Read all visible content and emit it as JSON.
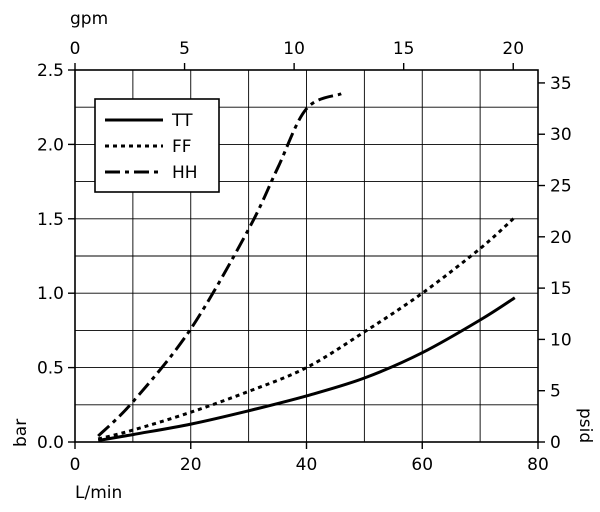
{
  "chart_data": {
    "type": "line",
    "x_unit": "L/min",
    "x_secondary_unit": "gpm",
    "y_unit": "bar",
    "y_secondary_unit": "psid",
    "xlim": [
      0,
      80
    ],
    "ylim": [
      0,
      2.5
    ],
    "x_secondary_lim": [
      0,
      21.13
    ],
    "y_secondary_lim": [
      0,
      36.26
    ],
    "x_ticks": [
      0,
      20,
      40,
      60,
      80
    ],
    "x_tick_labels": [
      "0",
      "20",
      "40",
      "60",
      "80"
    ],
    "y_ticks": [
      0,
      0.5,
      1.0,
      1.5,
      2.0,
      2.5
    ],
    "y_tick_labels": [
      "0.0",
      "0.5",
      "1.0",
      "1.5",
      "2.0",
      "2.5"
    ],
    "x_secondary_ticks": [
      0,
      5,
      10,
      15,
      20
    ],
    "x_secondary_tick_labels": [
      "0",
      "5",
      "10",
      "15",
      "20"
    ],
    "y_secondary_ticks": [
      0,
      5,
      10,
      15,
      20,
      25,
      30,
      35
    ],
    "y_secondary_tick_labels": [
      "0",
      "5",
      "10",
      "15",
      "20",
      "25",
      "30",
      "35"
    ],
    "grid": true,
    "legend_position": "top-left",
    "series": [
      {
        "name": "TT",
        "style": "solid",
        "x": [
          4,
          10,
          20,
          30,
          40,
          50,
          60,
          70,
          76
        ],
        "y": [
          0.01,
          0.05,
          0.12,
          0.21,
          0.31,
          0.43,
          0.6,
          0.82,
          0.97
        ]
      },
      {
        "name": "FF",
        "style": "dotted",
        "x": [
          4,
          10,
          20,
          30,
          40,
          50,
          60,
          70,
          76
        ],
        "y": [
          0.02,
          0.08,
          0.2,
          0.34,
          0.5,
          0.74,
          1.0,
          1.3,
          1.51
        ]
      },
      {
        "name": "HH",
        "style": "dash-dot",
        "x": [
          4,
          10,
          20,
          30,
          35,
          40,
          46
        ],
        "y": [
          0.04,
          0.27,
          0.76,
          1.43,
          1.84,
          2.24,
          2.34
        ]
      }
    ]
  }
}
